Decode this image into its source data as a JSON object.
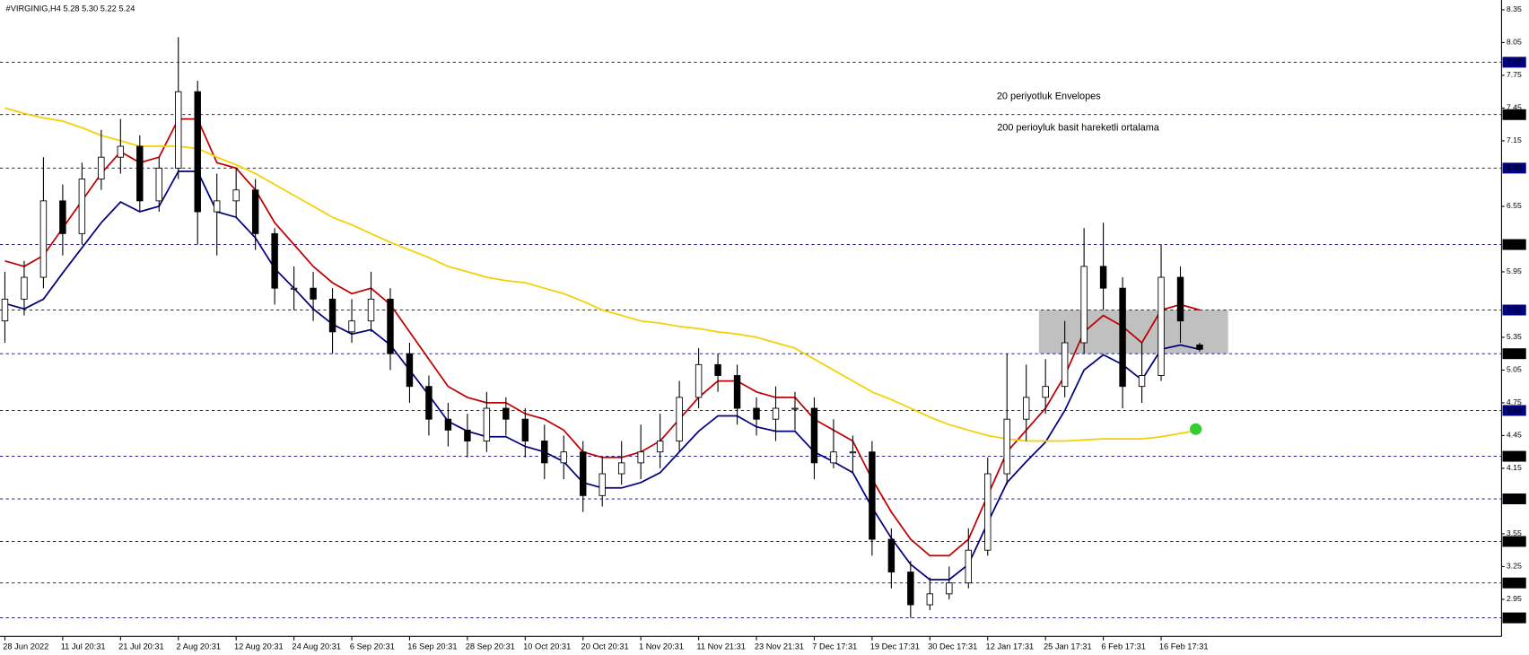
{
  "chart_data": {
    "type": "candlestick",
    "title": "#VIRGINIG,H4  5.28 5.30 5.22 5.24",
    "annotations": [
      {
        "text": "20 periyotluk Envelopes",
        "color": "#1a1a8c"
      },
      {
        "text": "200 perioyluk basit  hareketli ortalama",
        "color": "#f5a000"
      }
    ],
    "categories": [
      "28 Jun 2022",
      null,
      null,
      "11 Jul 20:31",
      null,
      null,
      "21 Jul 20:31",
      null,
      null,
      "2 Aug 20:31",
      null,
      null,
      "12 Aug 20:31",
      null,
      null,
      "24 Aug 20:31",
      null,
      null,
      "6 Sep 20:31",
      null,
      null,
      "16 Sep 20:31",
      null,
      null,
      "28 Sep 20:31",
      null,
      null,
      "10 Oct 20:31",
      null,
      null,
      "20 Oct 20:31",
      null,
      null,
      "1 Nov 20:31",
      null,
      null,
      "11 Nov 21:31",
      null,
      null,
      "23 Nov 21:31",
      null,
      null,
      "7 Dec 17:31",
      null,
      null,
      "19 Dec 17:31",
      null,
      null,
      "30 Dec 17:31",
      null,
      null,
      "12 Jan 17:31",
      null,
      null,
      "25 Jan 17:31",
      null,
      null,
      "6 Feb 17:31",
      null,
      null,
      "16 Feb 17:31",
      null,
      null
    ],
    "open": [
      5.5,
      5.7,
      5.9,
      6.6,
      6.3,
      6.8,
      7.0,
      7.1,
      6.6,
      6.9,
      7.6,
      6.5,
      6.6,
      6.7,
      6.3,
      5.8,
      5.8,
      5.7,
      5.4,
      5.5,
      5.7,
      5.2,
      4.9,
      4.6,
      4.5,
      4.4,
      4.7,
      4.6,
      4.4,
      4.2,
      4.3,
      3.9,
      4.1,
      4.2,
      4.3,
      4.4,
      4.8,
      5.1,
      5.0,
      4.7,
      4.6,
      4.7,
      4.7,
      4.2,
      4.3,
      4.3,
      3.5,
      3.2,
      2.9,
      3.0,
      3.1,
      3.4,
      4.1,
      4.6,
      4.8,
      4.9,
      5.3,
      6.0,
      5.8,
      4.9,
      5.0,
      5.9,
      5.28
    ],
    "high": [
      5.95,
      6.05,
      7.0,
      6.75,
      6.95,
      7.25,
      7.35,
      7.2,
      7.0,
      8.1,
      7.7,
      6.85,
      6.9,
      6.8,
      6.35,
      6.0,
      5.95,
      5.8,
      5.7,
      5.95,
      5.8,
      5.3,
      5.0,
      4.75,
      4.65,
      4.85,
      4.8,
      4.7,
      4.55,
      4.45,
      4.4,
      4.25,
      4.4,
      4.55,
      4.65,
      4.95,
      5.25,
      5.2,
      5.1,
      4.8,
      4.9,
      4.85,
      4.8,
      4.6,
      4.45,
      4.4,
      3.6,
      3.3,
      3.15,
      3.25,
      3.6,
      4.25,
      5.2,
      5.1,
      5.15,
      5.5,
      6.35,
      6.4,
      5.9,
      5.3,
      6.2,
      6.0,
      5.3
    ],
    "low": [
      5.3,
      5.55,
      5.8,
      6.1,
      6.2,
      6.7,
      6.85,
      6.5,
      6.5,
      6.8,
      6.2,
      6.1,
      6.45,
      6.15,
      5.65,
      5.6,
      5.5,
      5.2,
      5.3,
      5.4,
      5.05,
      4.75,
      4.45,
      4.35,
      4.25,
      4.3,
      4.45,
      4.25,
      4.05,
      4.05,
      3.75,
      3.8,
      4.0,
      4.05,
      4.15,
      4.3,
      4.7,
      4.85,
      4.55,
      4.45,
      4.4,
      4.5,
      4.05,
      4.15,
      4.1,
      3.35,
      3.05,
      2.78,
      2.85,
      2.95,
      3.05,
      3.35,
      4.0,
      4.4,
      4.65,
      4.8,
      5.2,
      5.6,
      4.7,
      4.75,
      4.95,
      5.3,
      5.22
    ],
    "close": [
      5.7,
      5.9,
      6.6,
      6.3,
      6.8,
      7.0,
      7.1,
      6.6,
      6.9,
      7.6,
      6.5,
      6.6,
      6.7,
      6.3,
      5.8,
      5.8,
      5.7,
      5.4,
      5.5,
      5.7,
      5.2,
      4.9,
      4.6,
      4.5,
      4.4,
      4.7,
      4.6,
      4.4,
      4.2,
      4.3,
      3.9,
      4.1,
      4.2,
      4.3,
      4.4,
      4.8,
      5.1,
      5.0,
      4.7,
      4.6,
      4.7,
      4.7,
      4.2,
      4.3,
      4.3,
      3.5,
      3.2,
      2.9,
      3.0,
      3.1,
      3.4,
      4.1,
      4.6,
      4.8,
      4.9,
      5.3,
      6.0,
      5.8,
      4.9,
      5.0,
      5.9,
      5.5,
      5.24
    ],
    "lines": [
      {
        "color": "#c00000",
        "values": [
          6.05,
          6.0,
          6.1,
          6.35,
          6.6,
          6.85,
          7.05,
          6.95,
          7.0,
          7.35,
          7.35,
          6.95,
          6.9,
          6.7,
          6.4,
          6.2,
          6.0,
          5.85,
          5.75,
          5.8,
          5.65,
          5.4,
          5.15,
          4.9,
          4.8,
          4.75,
          4.75,
          4.65,
          4.6,
          4.5,
          4.3,
          4.25,
          4.25,
          4.3,
          4.4,
          4.6,
          4.8,
          4.95,
          4.95,
          4.85,
          4.8,
          4.8,
          4.6,
          4.5,
          4.4,
          4.05,
          3.75,
          3.5,
          3.35,
          3.35,
          3.5,
          3.9,
          4.3,
          4.5,
          4.7,
          5.0,
          5.4,
          5.55,
          5.45,
          5.3,
          5.6,
          5.65,
          5.6
        ]
      },
      {
        "color": "#00007f",
        "values": [
          5.66,
          5.61,
          5.7,
          5.94,
          6.17,
          6.4,
          6.59,
          6.5,
          6.55,
          6.87,
          6.87,
          6.5,
          6.45,
          6.26,
          5.98,
          5.8,
          5.61,
          5.47,
          5.38,
          5.42,
          5.28,
          5.05,
          4.82,
          4.58,
          4.49,
          4.44,
          4.44,
          4.35,
          4.3,
          4.21,
          4.02,
          3.97,
          3.97,
          4.02,
          4.11,
          4.3,
          4.49,
          4.63,
          4.63,
          4.53,
          4.49,
          4.49,
          4.3,
          4.21,
          4.11,
          3.79,
          3.51,
          3.27,
          3.13,
          3.13,
          3.27,
          3.65,
          4.02,
          4.21,
          4.39,
          4.68,
          5.05,
          5.19,
          5.1,
          4.96,
          5.24,
          5.28,
          5.24
        ]
      },
      {
        "color": "#f5d000",
        "values": [
          7.45,
          7.4,
          7.36,
          7.33,
          7.27,
          7.2,
          7.15,
          7.1,
          7.1,
          7.1,
          7.08,
          7.0,
          6.93,
          6.85,
          6.75,
          6.65,
          6.55,
          6.45,
          6.38,
          6.3,
          6.22,
          6.15,
          6.08,
          6.0,
          5.95,
          5.9,
          5.87,
          5.85,
          5.8,
          5.75,
          5.68,
          5.6,
          5.55,
          5.5,
          5.48,
          5.45,
          5.43,
          5.4,
          5.38,
          5.35,
          5.3,
          5.25,
          5.15,
          5.05,
          4.95,
          4.85,
          4.78,
          4.7,
          4.62,
          4.55,
          4.5,
          4.45,
          4.42,
          4.4,
          4.4,
          4.4,
          4.41,
          4.42,
          4.42,
          4.42,
          4.44,
          4.47,
          4.5
        ]
      }
    ],
    "zone": [
      5.2,
      5.6
    ],
    "levels": [
      {
        "value": 7.87,
        "label": "7.87",
        "color": "#000080"
      },
      {
        "value": 7.39,
        "label": "7.39",
        "color": "#000000"
      },
      {
        "value": 6.9,
        "label": "6.90",
        "color": "#000080"
      },
      {
        "value": 6.2,
        "label": "6.20",
        "color": "#000000"
      },
      {
        "value": 5.6,
        "label": "5.60",
        "color": "#000080"
      },
      {
        "value": 5.2,
        "label": "5.20",
        "color": "#000000"
      },
      {
        "value": 4.68,
        "label": "4.68",
        "color": "#000080"
      },
      {
        "value": 4.26,
        "label": "4.26",
        "color": "#000000"
      },
      {
        "value": 3.87,
        "label": "3.87",
        "color": "#000000"
      },
      {
        "value": 3.48,
        "label": "3.48",
        "color": "#000000"
      },
      {
        "value": 3.1,
        "label": "3.10",
        "color": "#000000"
      },
      {
        "value": 2.78,
        "label": "2.78",
        "color": "#000000"
      }
    ],
    "ylim": [
      2.61,
      8.44
    ],
    "yticks": [
      8.35,
      8.05,
      7.75,
      7.45,
      7.15,
      6.55,
      5.95,
      5.35,
      5.05,
      4.75,
      4.45,
      4.15,
      3.55,
      3.25,
      2.95
    ]
  }
}
